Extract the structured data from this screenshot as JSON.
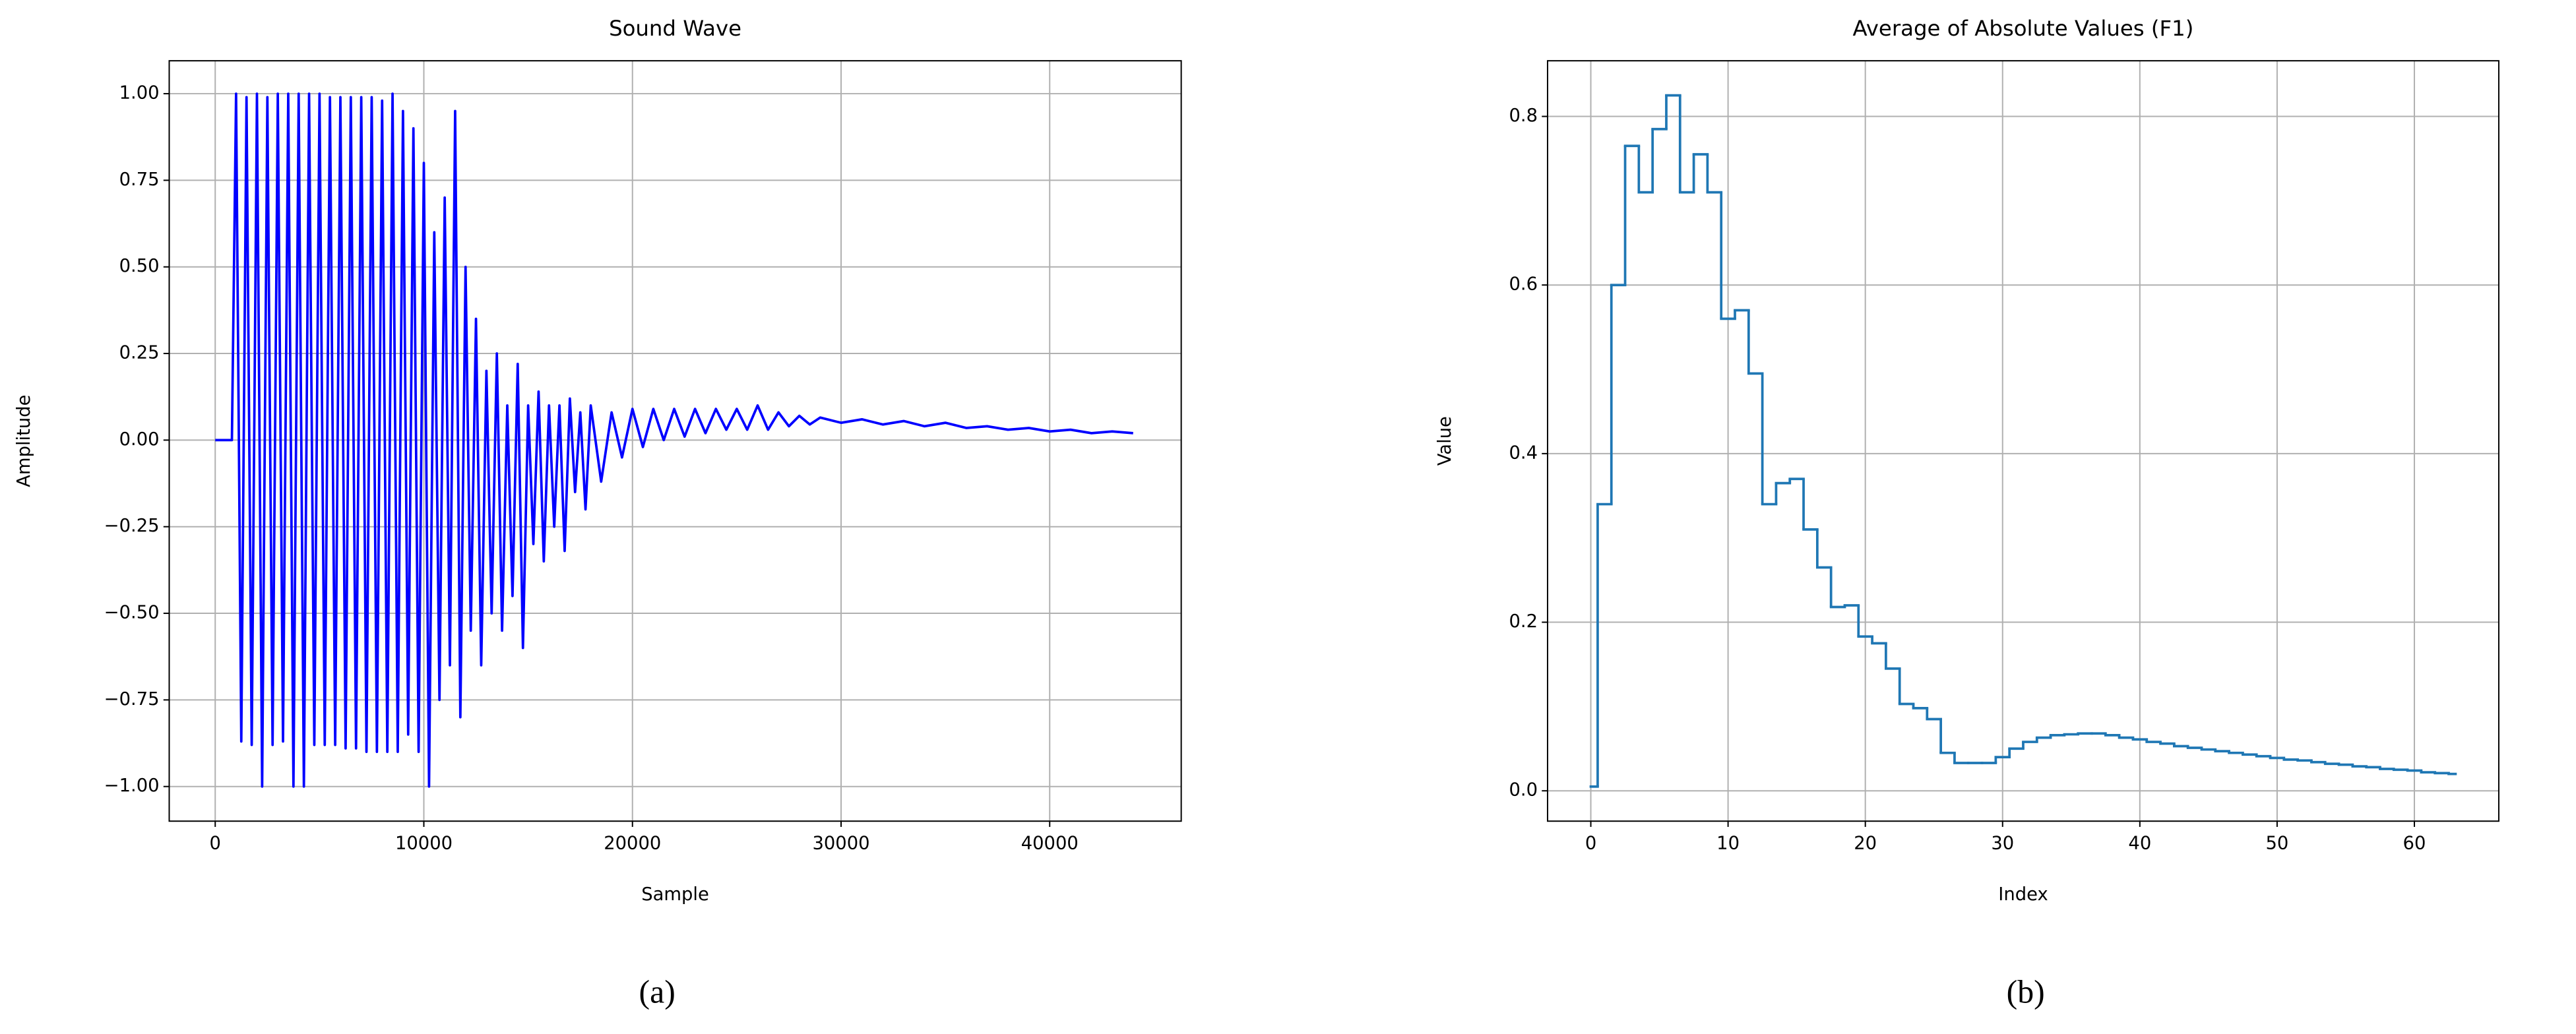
{
  "chart_data": [
    {
      "type": "line",
      "title": "Sound Wave",
      "xlabel": "Sample",
      "ylabel": "Amplitude",
      "color": "#0000ff",
      "grid": true,
      "xlim": [
        -2205,
        46304
      ],
      "ylim": [
        -1.1,
        1.095
      ],
      "xticks": [
        0,
        10000,
        20000,
        30000,
        40000
      ],
      "yticks": [
        {
          "value": -1,
          "label": "−1.00"
        },
        {
          "value": -0.75,
          "label": "−0.75"
        },
        {
          "value": -0.5,
          "label": "−0.50"
        },
        {
          "value": -0.25,
          "label": "−0.25"
        },
        {
          "value": 0,
          "label": "0.00"
        },
        {
          "value": 0.25,
          "label": "0.25"
        },
        {
          "value": 0.5,
          "label": "0.50"
        },
        {
          "value": 0.75,
          "label": "0.75"
        },
        {
          "value": 1,
          "label": "1.00"
        }
      ],
      "x": [
        0,
        800,
        1000,
        1250,
        1500,
        1750,
        2000,
        2250,
        2500,
        2750,
        3000,
        3250,
        3500,
        3750,
        4000,
        4250,
        4500,
        4750,
        5000,
        5250,
        5500,
        5750,
        6000,
        6250,
        6500,
        6750,
        7000,
        7250,
        7500,
        7750,
        8000,
        8250,
        8500,
        8750,
        9000,
        9250,
        9500,
        9750,
        10000,
        10250,
        10500,
        10750,
        11000,
        11250,
        11500,
        11750,
        12000,
        12250,
        12500,
        12750,
        13000,
        13250,
        13500,
        13750,
        14000,
        14250,
        14500,
        14750,
        15000,
        15250,
        15500,
        15750,
        16000,
        16250,
        16500,
        16750,
        17000,
        17250,
        17500,
        17750,
        18000,
        18500,
        19000,
        19500,
        20000,
        20500,
        21000,
        21500,
        22000,
        22500,
        23000,
        23500,
        24000,
        24500,
        25000,
        25500,
        26000,
        26500,
        27000,
        27500,
        28000,
        28500,
        29000,
        30000,
        31000,
        32000,
        33000,
        34000,
        35000,
        36000,
        37000,
        38000,
        39000,
        40000,
        41000,
        42000,
        43000,
        44000
      ],
      "values": [
        0.0,
        0.0,
        1.0,
        -0.87,
        0.99,
        -0.88,
        1.0,
        -1.0,
        0.99,
        -0.88,
        1.0,
        -0.87,
        1.0,
        -1.0,
        1.0,
        -1.0,
        1.0,
        -0.88,
        1.0,
        -0.88,
        0.99,
        -0.88,
        0.99,
        -0.89,
        0.99,
        -0.89,
        0.99,
        -0.9,
        0.99,
        -0.9,
        0.98,
        -0.9,
        1.0,
        -0.9,
        0.95,
        -0.85,
        0.9,
        -0.9,
        0.8,
        -1.0,
        0.6,
        -0.75,
        0.7,
        -0.65,
        0.95,
        -0.8,
        0.5,
        -0.55,
        0.35,
        -0.65,
        0.2,
        -0.5,
        0.25,
        -0.55,
        0.1,
        -0.45,
        0.22,
        -0.6,
        0.1,
        -0.3,
        0.14,
        -0.35,
        0.1,
        -0.25,
        0.1,
        -0.32,
        0.12,
        -0.15,
        0.08,
        -0.2,
        0.1,
        -0.12,
        0.08,
        -0.05,
        0.09,
        -0.02,
        0.09,
        0.0,
        0.09,
        0.01,
        0.09,
        0.02,
        0.09,
        0.03,
        0.09,
        0.03,
        0.1,
        0.03,
        0.08,
        0.04,
        0.07,
        0.045,
        0.065,
        0.05,
        0.06,
        0.045,
        0.055,
        0.04,
        0.05,
        0.035,
        0.04,
        0.03,
        0.035,
        0.025,
        0.03,
        0.02,
        0.025,
        0.02
      ]
    },
    {
      "type": "step",
      "title": "Average of Absolute Values (F1)",
      "xlabel": "Index",
      "ylabel": "Value",
      "color": "#1f77b4",
      "grid": true,
      "xlim": [
        -3.15,
        66.15
      ],
      "ylim": [
        -0.036,
        0.866
      ],
      "xticks": [
        0,
        10,
        20,
        30,
        40,
        50,
        60
      ],
      "yticks": [
        {
          "value": 0,
          "label": "0.0"
        },
        0.2,
        0.4,
        0.6,
        0.8
      ],
      "x": [
        0,
        1,
        2,
        3,
        4,
        5,
        6,
        7,
        8,
        9,
        10,
        11,
        12,
        13,
        14,
        15,
        16,
        17,
        18,
        19,
        20,
        21,
        22,
        23,
        24,
        25,
        26,
        27,
        28,
        29,
        30,
        31,
        32,
        33,
        34,
        35,
        36,
        37,
        38,
        39,
        40,
        41,
        42,
        43,
        44,
        45,
        46,
        47,
        48,
        49,
        50,
        51,
        52,
        53,
        54,
        55,
        56,
        57,
        58,
        59,
        60,
        61,
        62,
        63
      ],
      "values": [
        0.005,
        0.34,
        0.6,
        0.765,
        0.71,
        0.785,
        0.825,
        0.71,
        0.755,
        0.71,
        0.56,
        0.57,
        0.495,
        0.34,
        0.365,
        0.37,
        0.31,
        0.265,
        0.218,
        0.22,
        0.183,
        0.175,
        0.145,
        0.103,
        0.098,
        0.085,
        0.045,
        0.033,
        0.033,
        0.033,
        0.04,
        0.05,
        0.058,
        0.063,
        0.066,
        0.067,
        0.068,
        0.068,
        0.066,
        0.063,
        0.061,
        0.058,
        0.056,
        0.053,
        0.051,
        0.049,
        0.047,
        0.045,
        0.043,
        0.041,
        0.039,
        0.037,
        0.036,
        0.034,
        0.032,
        0.031,
        0.029,
        0.028,
        0.026,
        0.025,
        0.024,
        0.022,
        0.021,
        0.02
      ]
    }
  ],
  "captions": [
    "(a)",
    "(b)"
  ]
}
